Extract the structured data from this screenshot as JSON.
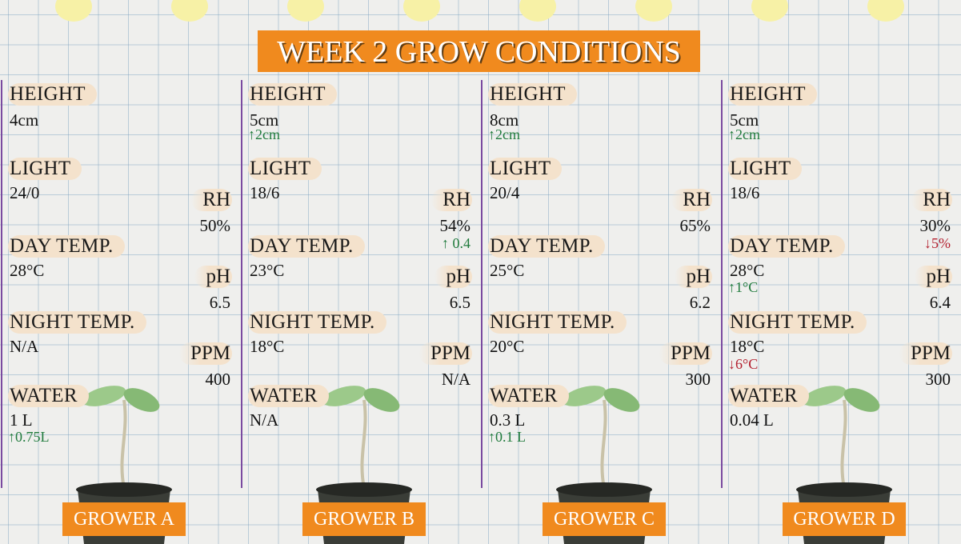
{
  "title": "WEEK 2 GROW CONDITIONS",
  "labels": {
    "height": "HEIGHT",
    "light": "LIGHT",
    "day_temp": "DAY TEMP.",
    "night_temp": "NIGHT TEMP.",
    "water": "WATER",
    "rh": "RH",
    "ph": "pH",
    "ppm": "PPM"
  },
  "growers": [
    {
      "name": "GROWER A",
      "height": "4cm",
      "light": "24/0",
      "day_temp": "28°C",
      "night_temp": "N/A",
      "water": "1 L",
      "water_change": {
        "text": "↑0.75L",
        "color": "#1f7a3c"
      },
      "rh": "50%",
      "ph": "6.5",
      "ppm": "400"
    },
    {
      "name": "GROWER B",
      "height": "5cm",
      "height_change": {
        "text": "↑2cm",
        "color": "#1f7a3c"
      },
      "light": "18/6",
      "day_temp": "23°C",
      "night_temp": "18°C",
      "water": "N/A",
      "rh": "54%",
      "rh_change": {
        "text": "↑ 0.4",
        "color": "#1f7a3c"
      },
      "ph": "6.5",
      "ppm": "N/A"
    },
    {
      "name": "GROWER C",
      "height": "8cm",
      "height_change": {
        "text": "↑2cm",
        "color": "#1f7a3c"
      },
      "light": "20/4",
      "day_temp": "25°C",
      "night_temp": "20°C",
      "water": "0.3 L",
      "water_change": {
        "text": "↑0.1 L",
        "color": "#1f7a3c"
      },
      "rh": "65%",
      "ph": "6.2",
      "ppm": "300"
    },
    {
      "name": "GROWER D",
      "height": "5cm",
      "height_change": {
        "text": "↑2cm",
        "color": "#1f7a3c"
      },
      "light": "18/6",
      "day_temp": "28°C",
      "day_temp_change": {
        "text": "↑1°C",
        "color": "#1f7a3c"
      },
      "night_temp": "18°C",
      "night_temp_change": {
        "text": "↓6°C",
        "color": "#b3202f"
      },
      "water": "0.04 L",
      "rh": "30%",
      "rh_change": {
        "text": "↓5%",
        "color": "#b3202f"
      },
      "ph": "6.4",
      "ppm": "300"
    }
  ]
}
